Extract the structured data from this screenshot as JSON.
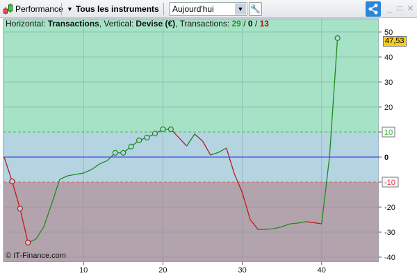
{
  "toolbar": {
    "title": "Performance",
    "instruments": "Tous les instruments",
    "period": "Aujourd'hui"
  },
  "info": {
    "h_label": "Horizontal: ",
    "h_value": "Transactions",
    "v_label": ", Vertical: ",
    "v_value": "Devise (€)",
    "t_label": ", Transactions: ",
    "wins": "29",
    "sep1": " / ",
    "neutral": "0",
    "sep2": " / ",
    "losses": "13"
  },
  "copyright": "© IT-Finance.com",
  "last_value": "47,53",
  "colors": {
    "up": "#1a8a1a",
    "down": "#c01818",
    "zero": "#2222ee",
    "upper_band": "#a6e2c6",
    "mid_band": "#b4d4e2",
    "lower_band": "#b3a3ad",
    "last_badge": "#f7cc1a"
  },
  "chart_data": {
    "type": "line",
    "x": [
      0,
      1,
      2,
      3,
      4,
      5,
      6,
      7,
      8,
      9,
      10,
      11,
      12,
      13,
      14,
      15,
      16,
      17,
      18,
      19,
      20,
      21,
      22,
      23,
      24,
      25,
      26,
      27,
      28,
      29,
      30,
      31,
      32,
      33,
      34,
      35,
      36,
      37,
      38,
      39,
      40,
      41,
      42
    ],
    "values": [
      0,
      -9.7,
      -20.6,
      -34.2,
      -32.8,
      -27.8,
      -18.6,
      -8.9,
      -7.5,
      -6.9,
      -6.4,
      -5,
      -2.8,
      -1.4,
      1.7,
      1.7,
      4.2,
      6.7,
      7.8,
      9.4,
      11.1,
      11.1,
      7.8,
      4.4,
      9.2,
      6.4,
      0.8,
      1.9,
      3.6,
      -6.7,
      -14.2,
      -25,
      -29,
      -28.9,
      -28.6,
      -27.8,
      -26.7,
      -26.4,
      -25.8,
      -26.2,
      -26.7,
      0.3,
      47.53
    ],
    "markers_low": [
      1,
      2,
      3
    ],
    "markers_high": [
      14,
      15,
      16,
      17,
      18,
      19,
      20,
      21,
      42
    ],
    "xlim": [
      0,
      47
    ],
    "ylim": [
      -42,
      55
    ],
    "x_ticks": [
      "10",
      "20",
      "30",
      "40"
    ],
    "y_ticks": [
      "50",
      "40",
      "30",
      "20",
      "10",
      "0",
      "-10",
      "-20",
      "-30",
      "-40"
    ],
    "upper_threshold": 10,
    "lower_threshold": -10,
    "grid": true
  }
}
